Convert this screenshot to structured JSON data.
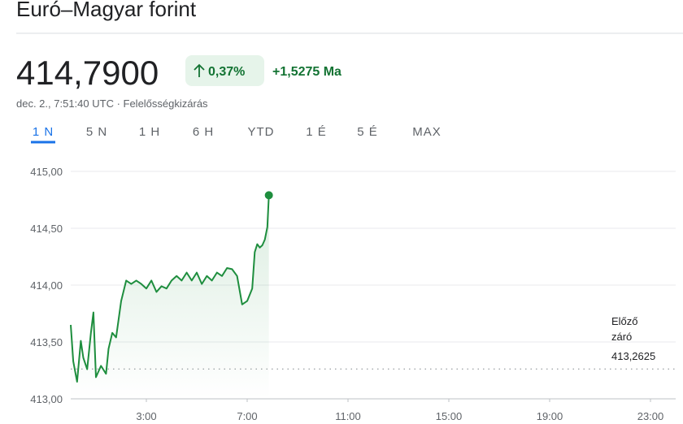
{
  "header": {
    "title": "Euró–Magyar forint",
    "price": "414,7900",
    "change_percent": "0,37%",
    "change_today": "+1,5275 Ma",
    "timestamp": "dec. 2., 7:51:40 UTC · Felelősségkizárás",
    "tabs": [
      "1 N",
      "5 N",
      "1 H",
      "6 H",
      "YTD",
      "1 É",
      "5 É",
      "MAX"
    ]
  },
  "chart_data": {
    "type": "line",
    "x": [
      0,
      0.1,
      0.25,
      0.4,
      0.5,
      0.65,
      0.8,
      0.9,
      1.0,
      1.2,
      1.4,
      1.5,
      1.65,
      1.8,
      2.0,
      2.2,
      2.4,
      2.6,
      2.8,
      3.0,
      3.2,
      3.4,
      3.6,
      3.8,
      4.0,
      4.2,
      4.4,
      4.6,
      4.8,
      5.0,
      5.2,
      5.4,
      5.6,
      5.8,
      6.0,
      6.2,
      6.4,
      6.6,
      6.8,
      7.0,
      7.2,
      7.3,
      7.4,
      7.5,
      7.6,
      7.7,
      7.8,
      7.86
    ],
    "series": [
      {
        "color": "#1e8e3e",
        "values": [
          413.65,
          413.33,
          413.15,
          413.51,
          413.36,
          413.26,
          413.58,
          413.76,
          413.19,
          413.29,
          413.22,
          413.44,
          413.58,
          413.54,
          413.86,
          414.04,
          414.01,
          414.04,
          414.01,
          413.97,
          414.04,
          413.94,
          413.99,
          413.97,
          414.04,
          414.08,
          414.04,
          414.11,
          414.04,
          414.11,
          414.01,
          414.08,
          414.04,
          414.11,
          414.08,
          414.15,
          414.14,
          414.08,
          413.83,
          413.86,
          413.97,
          414.29,
          414.36,
          414.33,
          414.35,
          414.4,
          414.51,
          414.79
        ]
      }
    ],
    "xlim": [
      0,
      24
    ],
    "xticks": [
      {
        "value": 3,
        "label": "3:00"
      },
      {
        "value": 7,
        "label": "7:00"
      },
      {
        "value": 11,
        "label": "11:00"
      },
      {
        "value": 15,
        "label": "15:00"
      },
      {
        "value": 19,
        "label": "19:00"
      },
      {
        "value": 23,
        "label": "23:00"
      }
    ],
    "ylim": [
      413,
      415
    ],
    "yticks": [
      {
        "value": 413,
        "label": "413,00"
      },
      {
        "value": 413.5,
        "label": "413,50"
      },
      {
        "value": 414,
        "label": "414,00"
      },
      {
        "value": 414.5,
        "label": "414,50"
      },
      {
        "value": 415,
        "label": "415,00"
      }
    ],
    "grid": true,
    "previous_close": {
      "label": "Előző záró",
      "value": 413.2625,
      "value_label": "413,2625"
    }
  }
}
